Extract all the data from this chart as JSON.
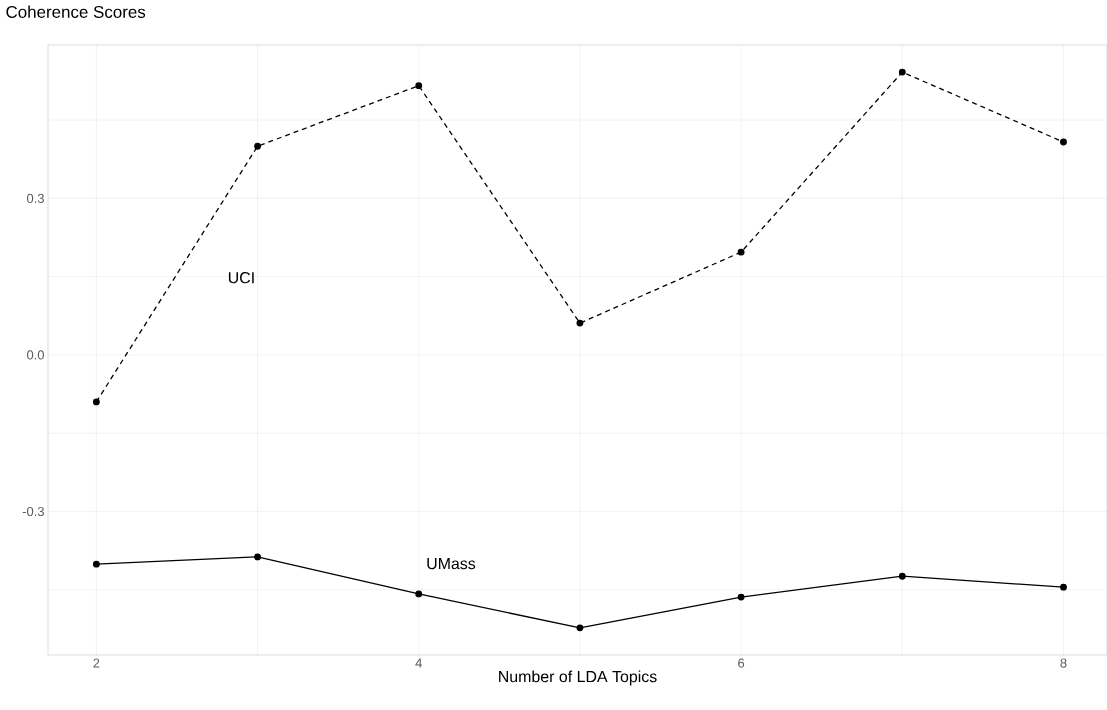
{
  "chart_data": {
    "type": "line",
    "title": "Coherence Scores",
    "xlabel": "Number of LDA Topics",
    "x": [
      2,
      3,
      4,
      5,
      6,
      7,
      8
    ],
    "series": [
      {
        "name": "UCI",
        "color": "#000000",
        "line_style": "dashed",
        "values": [
          -0.09,
          0.4,
          0.516,
          0.061,
          0.197,
          0.542,
          0.408
        ]
      },
      {
        "name": "UMass",
        "color": "#000000",
        "line_style": "solid",
        "values": [
          -0.401,
          -0.387,
          -0.458,
          -0.523,
          -0.464,
          -0.424,
          -0.445
        ]
      }
    ],
    "marker": "circle",
    "grid": true,
    "xlim": [
      1.7,
      8.27
    ],
    "ylim": [
      -0.575,
      0.594
    ],
    "xticks": [
      2,
      {
        "value": 3,
        "label": null
      },
      4,
      {
        "value": 5,
        "label": null
      },
      6,
      {
        "value": 7,
        "label": null
      },
      8
    ],
    "yticks": [
      {
        "value": -0.45,
        "label": null
      },
      -0.3,
      {
        "value": -0.15,
        "label": null
      },
      {
        "value": 0.0,
        "label": "0.0"
      },
      {
        "value": 0.15,
        "label": null
      },
      0.3,
      {
        "value": 0.45,
        "label": null
      }
    ]
  }
}
